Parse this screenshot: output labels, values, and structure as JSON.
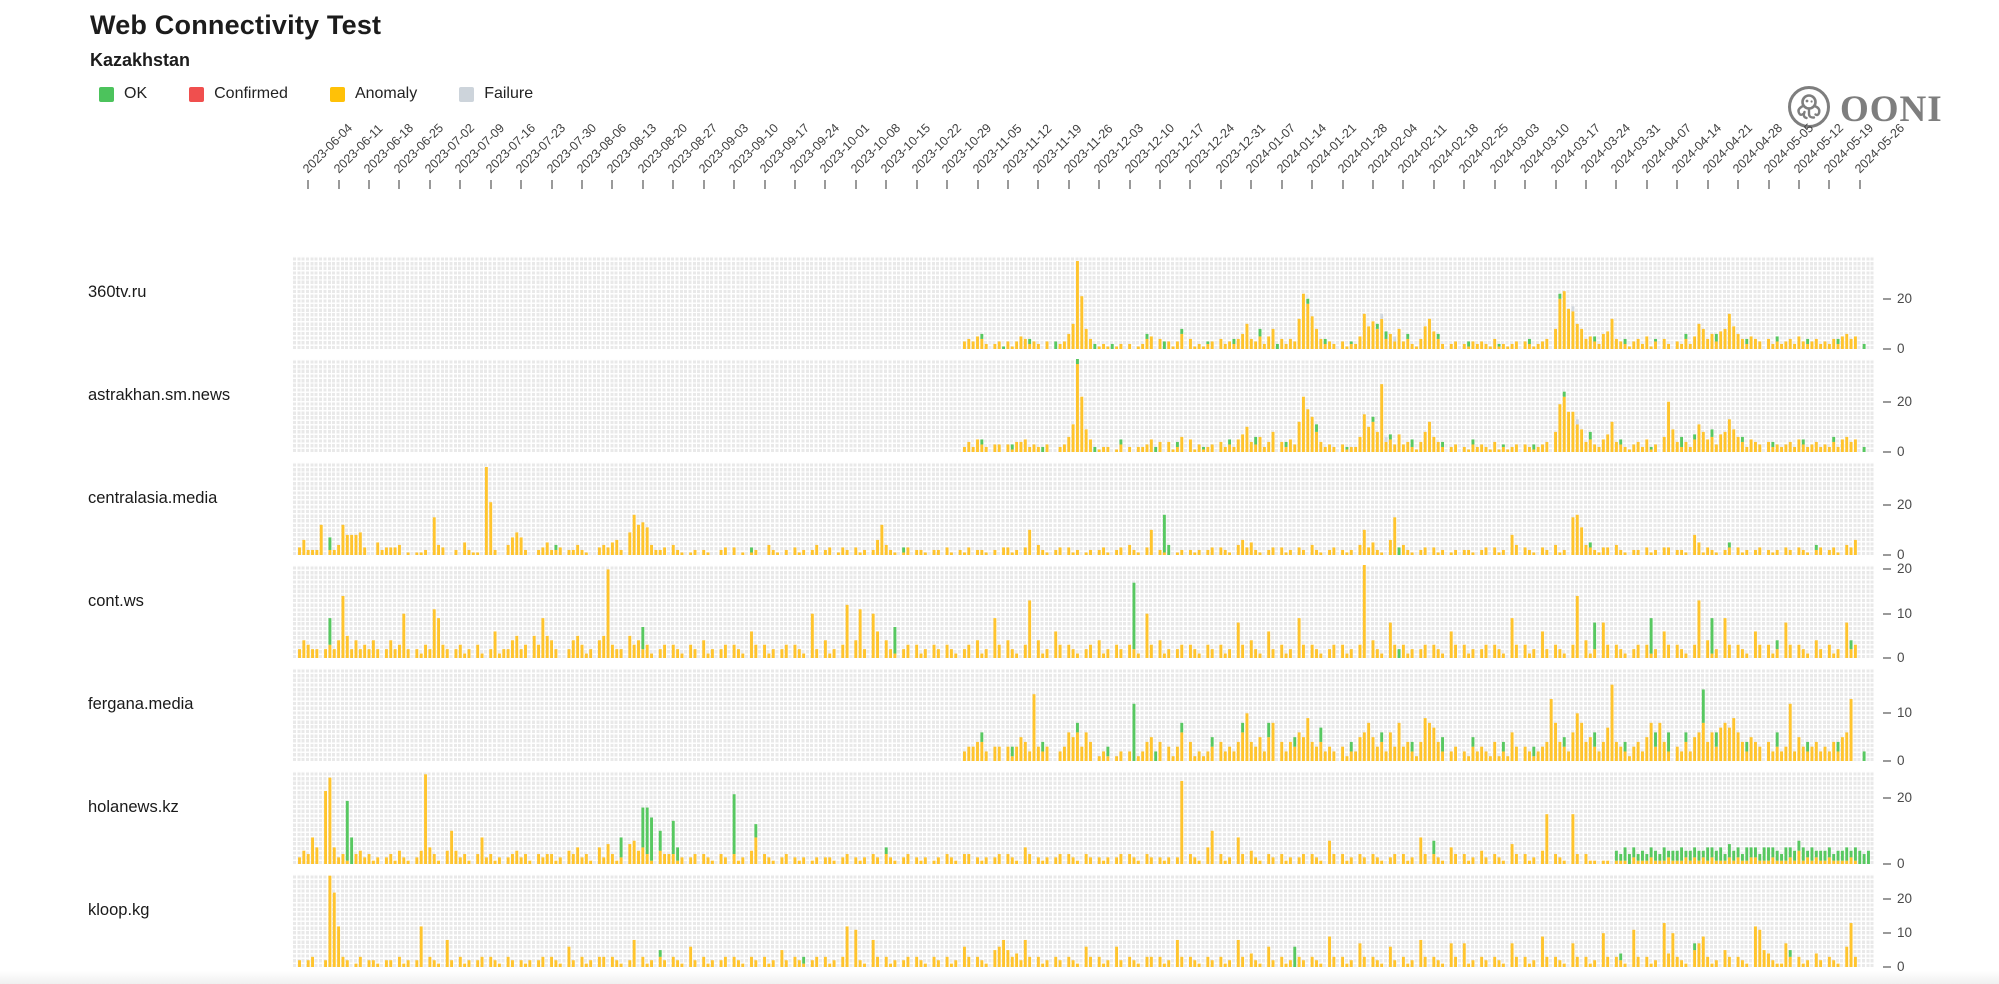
{
  "header": {
    "title": "Web Connectivity Test",
    "subtitle": "Kazakhstan",
    "brand": "OONI"
  },
  "legend": {
    "items": [
      {
        "label": "OK",
        "color": "#4cc35c"
      },
      {
        "label": "Confirmed",
        "color": "#f04f4e"
      },
      {
        "label": "Anomaly",
        "color": "#ffc107"
      },
      {
        "label": "Failure",
        "color": "#cdd4db"
      }
    ]
  },
  "chart_data": {
    "type": "bar",
    "stacked": true,
    "x_unit": "day",
    "start_date": "2023-06-01",
    "days": 364,
    "legend_position": "top-left",
    "grid": true,
    "colors": {
      "ok": "#57c860",
      "confirmed": "#f04f4e",
      "anomaly": "#ffc42d",
      "failure": "#d2d8de"
    },
    "value_encoding": "base36 char per day; dots are separators; 'a'=anomaly stack, 'o'=OK stack (pairs [day,height] or {start,s,extra}), 'f'=failure stack",
    "week_ticks": [
      "2023-06-04",
      "2023-06-11",
      "2023-06-18",
      "2023-06-25",
      "2023-07-02",
      "2023-07-09",
      "2023-07-16",
      "2023-07-23",
      "2023-07-30",
      "2023-08-06",
      "2023-08-13",
      "2023-08-20",
      "2023-08-27",
      "2023-09-03",
      "2023-09-10",
      "2023-09-17",
      "2023-09-24",
      "2023-10-01",
      "2023-10-08",
      "2023-10-15",
      "2023-10-22",
      "2023-10-29",
      "2023-11-05",
      "2023-11-12",
      "2023-11-19",
      "2023-11-26",
      "2023-12-03",
      "2023-12-10",
      "2023-12-17",
      "2023-12-24",
      "2023-12-31",
      "2024-01-07",
      "2024-01-14",
      "2024-01-21",
      "2024-01-28",
      "2024-02-04",
      "2024-02-11",
      "2024-02-18",
      "2024-02-25",
      "2024-03-03",
      "2024-03-10",
      "2024-03-17",
      "2024-03-24",
      "2024-03-31",
      "2024-04-07",
      "2024-04-14",
      "2024-04-21",
      "2024-04-28",
      "2024-05-05",
      "2024-05-12",
      "2024-05-19",
      "2024-05-26"
    ],
    "rows": [
      {
        "site": "360tv.ru",
        "ylim": [
          0,
          37
        ],
        "yticks": [
          0,
          20
        ],
        "a": {
          "start": 154,
          "s": "3435420.2303135.4232030.0236azl.8401210.1202012.4504031.3604121.2304232.46a4352.5804243.cmid842.3203122.5e9b8c4.6383421.49c7420.2302132.3214121.2303212.3408kng.fa84532.67c4321.3425130.4203242.5a84637.8e96425.4304232.3425323.4232425.6450000"
        },
        "o": [
          [
            158,
            2
          ],
          [
            163,
            1
          ],
          [
            169,
            2
          ],
          [
            175,
            3
          ],
          [
            184,
            2
          ],
          [
            188,
            2
          ],
          [
            196,
            2
          ],
          [
            200,
            3
          ],
          [
            204,
            2
          ],
          [
            210,
            1
          ],
          [
            216,
            2
          ],
          [
            222,
            3
          ],
          [
            226,
            2
          ],
          [
            233,
            2
          ],
          [
            237,
            2
          ],
          [
            243,
            1
          ],
          [
            249,
            2
          ],
          [
            251,
            3
          ],
          [
            256,
            2
          ],
          [
            263,
            2
          ],
          [
            270,
            2
          ],
          [
            277,
            1
          ],
          [
            284,
            2
          ],
          [
            291,
            2
          ],
          [
            299,
            2
          ],
          [
            306,
            2
          ],
          [
            313,
            1
          ],
          [
            320,
            2
          ],
          [
            327,
            3
          ],
          [
            334,
            2
          ],
          [
            341,
            2
          ],
          [
            348,
            2
          ],
          [
            355,
            2
          ],
          [
            361,
            2
          ]
        ],
        "f": [
          [
            250,
            2
          ],
          [
            253,
            2
          ],
          [
            294,
            2
          ]
        ]
      },
      {
        "site": "astrakhan.sm.news",
        "ylim": [
          0,
          37
        ],
        "yticks": [
          0,
          20
        ],
        "a": {
          "start": 154,
          "s": "2425320.3303144.5232030.0236bzm.9501220.1302022.3504041.2605131.2304232.57a4362.4804253.cmhe842.3203122.6fac8r4.5373421.48c6420.2302132.3214121.2303212.3408jmg.gb94532.57c4321.3425130.6k94242.5b85637.8d96425.4304232.3425323.4232425.6450000"
        },
        "o": [
          [
            158,
            2
          ],
          [
            165,
            2
          ],
          [
            172,
            2
          ],
          [
            180,
            3
          ],
          [
            184,
            2
          ],
          [
            190,
            2
          ],
          [
            198,
            2
          ],
          [
            203,
            2
          ],
          [
            209,
            1
          ],
          [
            215,
            2
          ],
          [
            221,
            3
          ],
          [
            228,
            2
          ],
          [
            235,
            3
          ],
          [
            242,
            1
          ],
          [
            248,
            2
          ],
          [
            252,
            2
          ],
          [
            257,
            3
          ],
          [
            264,
            2
          ],
          [
            271,
            2
          ],
          [
            278,
            1
          ],
          [
            285,
            2
          ],
          [
            292,
            2
          ],
          [
            298,
            3
          ],
          [
            305,
            2
          ],
          [
            312,
            1
          ],
          [
            319,
            4
          ],
          [
            322,
            2
          ],
          [
            326,
            3
          ],
          [
            333,
            2
          ],
          [
            340,
            2
          ],
          [
            347,
            2
          ],
          [
            354,
            2
          ],
          [
            361,
            2
          ]
        ],
        "f": [
          [
            251,
            2
          ],
          [
            295,
            2
          ]
        ]
      },
      {
        "site": "centralasia.media",
        "ylim": [
          0,
          37
        ],
        "yticks": [
          0,
          20
        ],
        "a": {
          "start": 0,
          "s": "036222c.0224c88.8930052.3334010.1120f43.0020521.10zl200.4797200.2352230.2242100.3435620.9gcdb42.2304210.1202100.2303010.1200421.0203120.2402301.3203120.26c4210.1302210.2203102.1302210.2033120.3a04210.2303120.1202310.2304210.3a02100.1202120.2303210.4635210.2303120.3204210.2302120.4a35210.6f04210.2303120.1202210.2303120.8403210.3204120.fgb4321.3304210.2203120.3302210.8513210.2303120.2302120.3203210.2302310.4360000"
        },
        "o": [
          [
            8,
            5
          ],
          [
            60,
            2
          ],
          [
            105,
            2
          ],
          [
            140,
            2
          ],
          [
            200,
            15
          ],
          [
            201,
            4
          ],
          [
            254,
            3
          ],
          [
            298,
            2
          ],
          [
            330,
            2
          ],
          [
            350,
            2
          ]
        ],
        "f": []
      },
      {
        "site": "cont.ws",
        "ylim": [
          0,
          21
        ],
        "yticks": [
          0,
          10,
          20
        ],
        "a": {
          "start": 0,
          "s": "0243220.2324e52.4232420.2423a20.2132b93.2023120.3102612.2452305.3954200.2453120.45k3220.5342310.2303210.3204120.2303210.6303120.2303210.a204120.3c04b20.a604210.2303120.3203210.2304120.9304210.3d04120.6303210.2304120.3203210.a304120.2303210.3203120.8304210.6203120.9303210.2303120.3l04210.8303120.2303210.6303120.2303210.9303120.6203210.3e04120.8303210.2303120.6303210.3d04120.9303210.6303120.8303210.4203120.8230000"
        },
        "o": [
          [
            8,
            6
          ],
          [
            80,
            5
          ],
          [
            138,
            6
          ],
          [
            193,
            15
          ],
          [
            254,
            2
          ],
          [
            299,
            6
          ],
          [
            312,
            8
          ],
          [
            326,
            8
          ],
          [
            341,
            2
          ],
          [
            358,
            2
          ]
        ],
        "f": []
      },
      {
        "site": "fergana.media",
        "ylim": [
          0,
          19.5
        ],
        "yticks": [
          0,
          10
        ],
        "a": {
          "start": 154,
          "s": "2334420.3303135.42e3230.0236563.6401210.1202012.4504031.3604121.2304232.46a4352.5804243.6594342.3203122.5685342.6383421.4987420.2302132.3214121.6303212.34d8432.6a84532.47g4321.3425838.4203242.5684637.8796425.4304232.3c25323.4232425.6d00000"
        },
        "o": [
          [
            158,
            2
          ],
          [
            165,
            2
          ],
          [
            172,
            2
          ],
          [
            180,
            2
          ],
          [
            187,
            2
          ],
          [
            193,
            12
          ],
          [
            198,
            2
          ],
          [
            204,
            2
          ],
          [
            211,
            2
          ],
          [
            218,
            2
          ],
          [
            224,
            3
          ],
          [
            230,
            2
          ],
          [
            236,
            3
          ],
          [
            243,
            2
          ],
          [
            250,
            2
          ],
          [
            257,
            2
          ],
          [
            264,
            3
          ],
          [
            271,
            2
          ],
          [
            278,
            2
          ],
          [
            285,
            2
          ],
          [
            292,
            2
          ],
          [
            299,
            3
          ],
          [
            306,
            2
          ],
          [
            313,
            3
          ],
          [
            316,
            4
          ],
          [
            320,
            2
          ],
          [
            324,
            7
          ],
          [
            327,
            3
          ],
          [
            334,
            2
          ],
          [
            341,
            3
          ],
          [
            348,
            2
          ],
          [
            355,
            2
          ],
          [
            361,
            2
          ]
        ],
        "f": []
      },
      {
        "site": "holanews.kz",
        "ylim": [
          0,
          28
        ],
        "yticks": [
          0,
          20
        ],
        "a": {
          "start": 0,
          "s": "0243850.mq52310.3423120.2314210.24r5310.4a42310.3823120.2342310.3233120.4352310.5263120.6745310.4333120.2303210.3203120.4803210.2302120.1202210.2302120.3203210.2302120.1203210.3302120.2303210.5302120.2303210.3202120.2303210.3202120.2p03210.5a03120.8304210.3203120.2303210.7303120.3203210.2303120.8303210.5303120.4203210.6303120.4f03210.f303110.1101110.2111211.1211121.2121211.1212112.2111211.1214121.2112111.1210000"
        },
        "o": {
          "start": 304,
          "s": "3243323.2332423.3423332.4334243.3243324.4332433.3424233.3233424.4340000",
          "extra": [
            [
              12,
              18
            ],
            [
              13,
              8
            ],
            [
              75,
              6
            ],
            [
              80,
              12
            ],
            [
              81,
              14
            ],
            [
              82,
              13
            ],
            [
              84,
              6
            ],
            [
              87,
              10
            ],
            [
              88,
              4
            ],
            [
              101,
              18
            ],
            [
              106,
              4
            ],
            [
              136,
              2
            ],
            [
              262,
              4
            ]
          ]
        },
        "f": []
      },
      {
        "site": "kloop.kg",
        "ylim": [
          0,
          27.5
        ],
        "yticks": [
          0,
          10,
          20
        ],
        "a": {
          "start": 0,
          "s": "0202300.2rmc320.1302210.2203120.2c03210.8203120.2303210.3202120.2303210.6203120.3303210.2803120.3203210.6203120.2303210.3203120.5203210.2303120.3c0b210.8303120.2303210.3203120.6303210.5685342.8303120.3203210.6303120.6203210.3303120.8303210.3203120.8304210.6203120.3203210.9303120.7303210.6203120.8303210.7307120.3203210.7303120.9303210.7303120.a303210.b303120.d4a3210.5793120.5303210.cb54211.7303120.4203210.6d30000"
        },
        "o": [
          [
            84,
            2
          ],
          [
            117,
            2
          ],
          [
            230,
            6
          ],
          [
            305,
            2
          ],
          [
            322,
            2
          ],
          [
            344,
            2
          ]
        ],
        "f": []
      }
    ]
  }
}
